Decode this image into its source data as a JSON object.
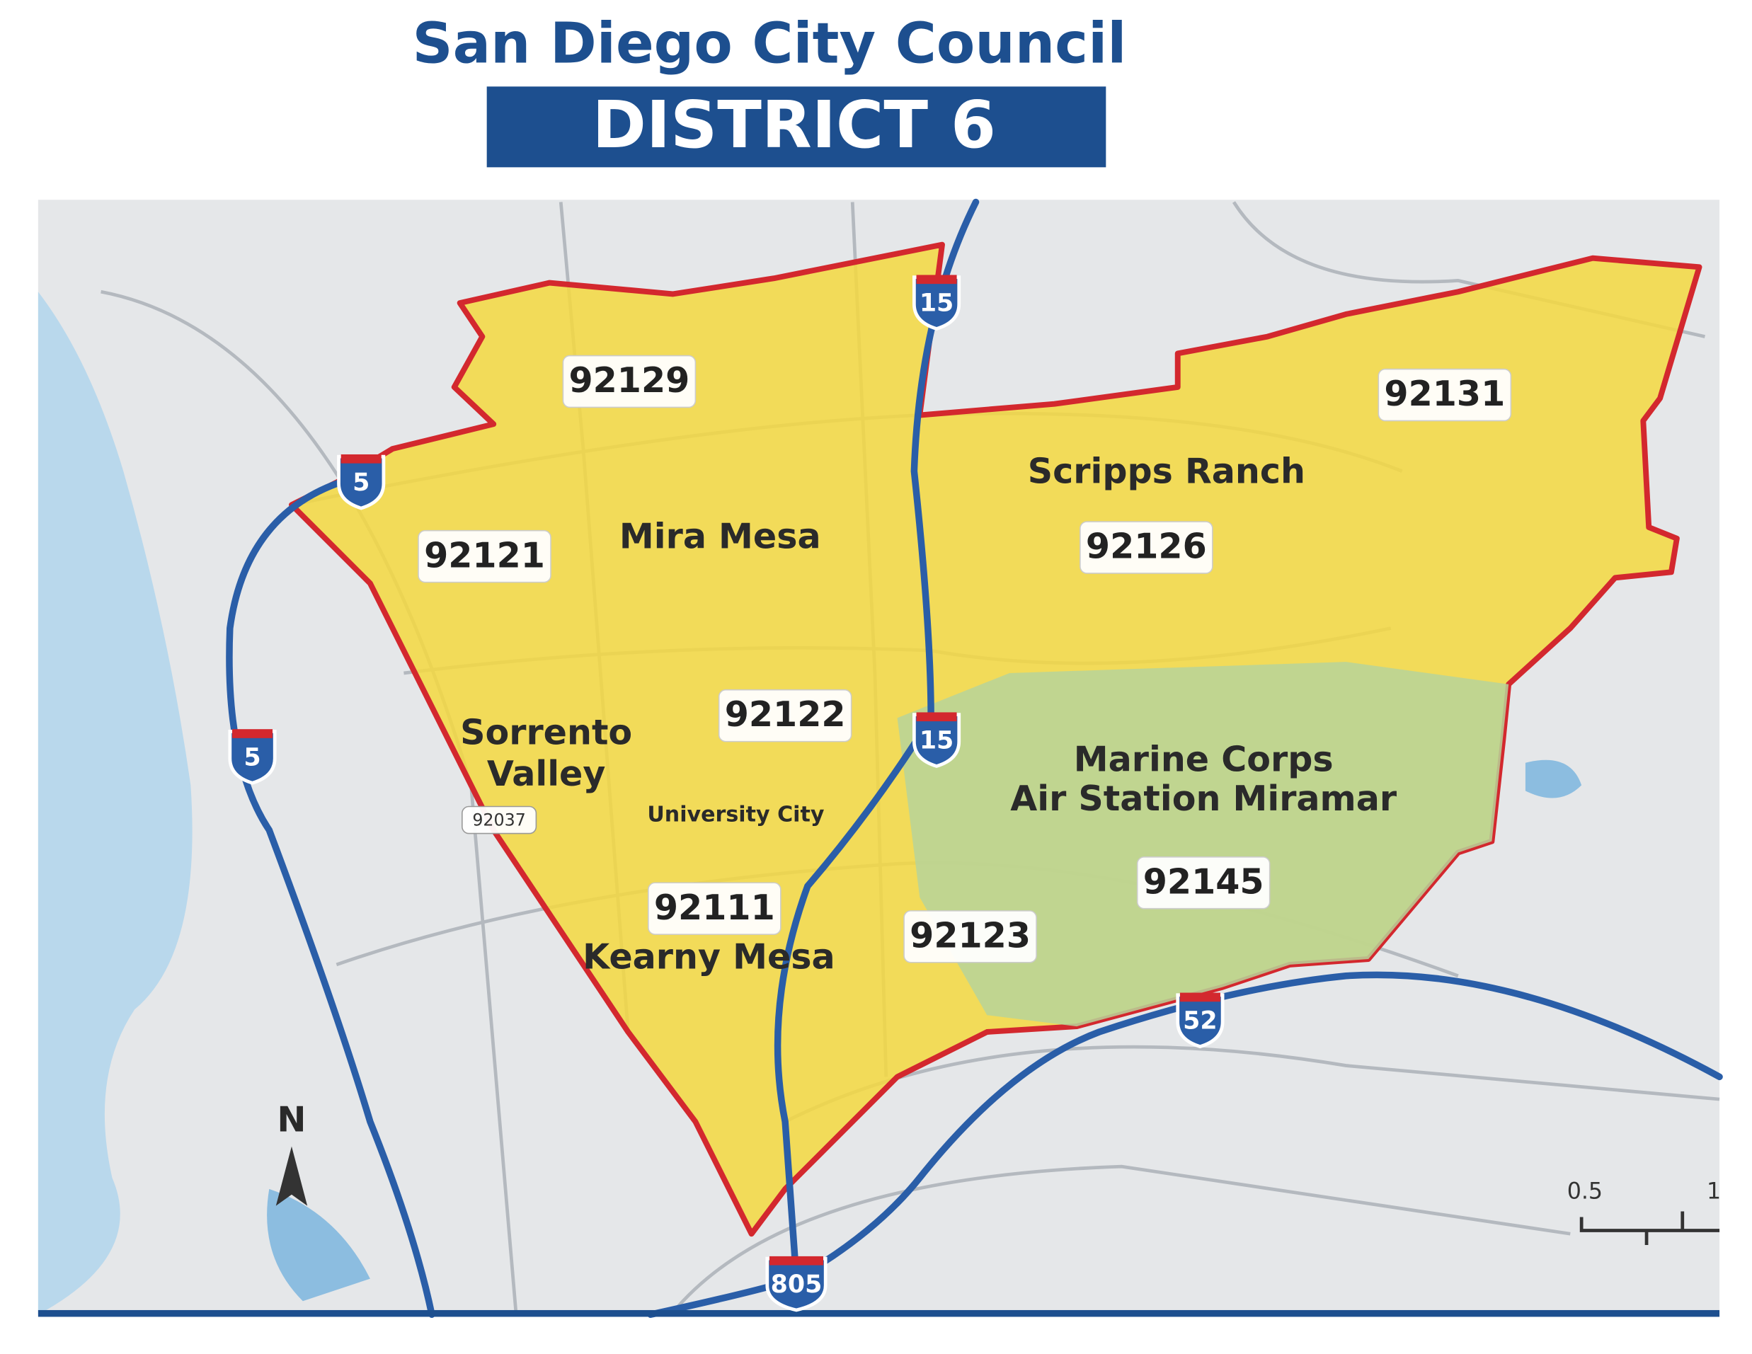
{
  "header": {
    "title": "San Diego City Council",
    "subtitle": "DISTRICT 6"
  },
  "zip_codes": [
    "92129",
    "92131",
    "92126",
    "92121",
    "92122",
    "92037",
    "92111",
    "92123",
    "92145"
  ],
  "neighborhoods": [
    {
      "lines": [
        "Mira Mesa"
      ]
    },
    {
      "lines": [
        "Scripps Ranch"
      ]
    },
    {
      "lines": [
        "Sorrento",
        "Valley"
      ]
    },
    {
      "lines": [
        "Marine Corps",
        "Air Station Miramar"
      ]
    },
    {
      "lines": [
        "Kearny Mesa"
      ]
    },
    {
      "lines": [
        "University City"
      ]
    }
  ],
  "highways": [
    "5",
    "5",
    "15",
    "15",
    "52",
    "805"
  ],
  "compass": "N",
  "scale_bar": [
    "0.5",
    "1"
  ]
}
